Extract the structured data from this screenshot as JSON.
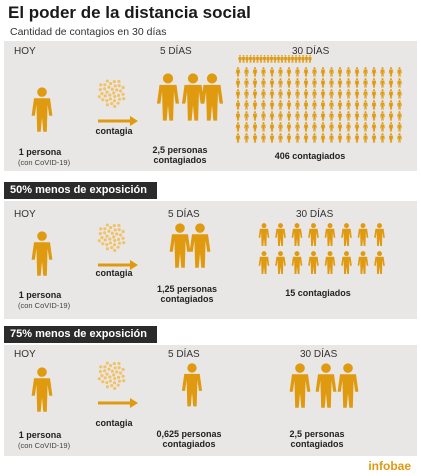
{
  "header": {
    "title": "El poder de la distancia social",
    "subtitle": "Cantidad de contagios en 30 días"
  },
  "sections": [
    {
      "band": "",
      "hoy": "HOY",
      "five_days": "5 DÍAS",
      "thirty_days": "30 DÍAS",
      "person": "1 persona",
      "person_note": "(con CoVID-19)",
      "verb": "contagia",
      "result_5": "2,5 personas\ncontagiados",
      "result_30": "406 contagiados"
    },
    {
      "band": "50% menos de exposición",
      "hoy": "HOY",
      "five_days": "5 DÍAS",
      "thirty_days": "30 DÍAS",
      "person": "1 persona",
      "person_note": "(con CoVID-19)",
      "verb": "contagia",
      "result_5": "1,25 personas\ncontagiados",
      "result_30": "15 contagiados"
    },
    {
      "band": "75% menos de exposición",
      "hoy": "HOY",
      "five_days": "5 DÍAS",
      "thirty_days": "30 DÍAS",
      "person": "1 persona",
      "person_note": "(con CoVID-19)",
      "verb": "contagia",
      "result_5": "0,625 personas\ncontagiados",
      "result_30": "2,5 personas\ncontagiados"
    }
  ],
  "counts": {
    "today": 1,
    "five_days": [
      2.5,
      1.25,
      0.625
    ],
    "thirty_days": [
      406,
      15,
      2.5
    ]
  },
  "colors": {
    "accent": "#e09a10",
    "panel": "#e9e7e5",
    "band": "#2b2b2b"
  },
  "brand": "infobae"
}
